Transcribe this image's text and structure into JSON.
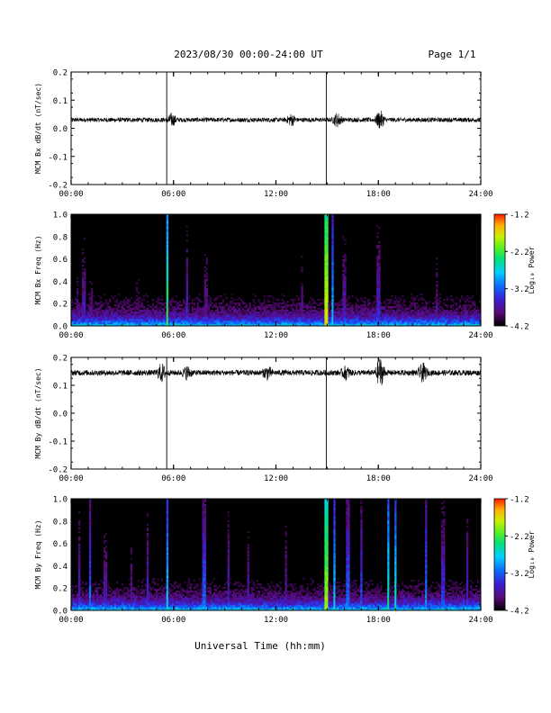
{
  "header": {
    "title": "2023/08/30  00:00-24:00 UT",
    "page": "Page 1/1"
  },
  "footer": {
    "xlabel": "Universal Time (hh:mm)"
  },
  "colors": {
    "trace": "#000000",
    "background": "#ffffff",
    "colormap": [
      "#000000",
      "#5a0a78",
      "#3b1fd6",
      "#0a6cff",
      "#00d0ff",
      "#00e07a",
      "#5cf020",
      "#c8f000",
      "#ffb000",
      "#ff1a00"
    ]
  },
  "chart_data": [
    {
      "type": "line",
      "ylabel": "MCM Bx dB/dt (nT/sec)",
      "xlim": [
        0,
        24
      ],
      "ylim": [
        -0.2,
        0.2
      ],
      "yticks": [
        "0.2",
        "0.1",
        "0.0",
        "-0.1",
        "-0.2"
      ],
      "xticks": [
        "00:00",
        "06:00",
        "12:00",
        "18:00",
        "24:00"
      ],
      "baseline": 0.03,
      "noise_amplitude": 0.008,
      "spike_times": [
        5.6,
        14.95
      ],
      "bursts": [
        {
          "t": 5.9,
          "amp": 0.02
        },
        {
          "t": 12.9,
          "amp": 0.018
        },
        {
          "t": 15.6,
          "amp": 0.022
        },
        {
          "t": 18.1,
          "amp": 0.03
        }
      ]
    },
    {
      "type": "heatmap",
      "ylabel": "MCM Bx Freq (Hz)",
      "xlim": [
        0,
        24
      ],
      "ylim": [
        0,
        1.0
      ],
      "yticks": [
        "1.0",
        "0.8",
        "0.6",
        "0.4",
        "0.2",
        "0.0"
      ],
      "xticks": [
        "00:00",
        "06:00",
        "12:00",
        "18:00",
        "24:00"
      ],
      "colorbar": {
        "label": "Log₁₀ Power",
        "ticks": [
          "-1.2",
          "-2.2",
          "-3.2",
          "-4.2"
        ],
        "range": [
          -4.2,
          -1.2
        ]
      },
      "event_lines": [
        {
          "t": 0.4,
          "level": -3.6
        },
        {
          "t": 0.75,
          "level": -3.4
        },
        {
          "t": 1.15,
          "level": -3.6
        },
        {
          "t": 3.9,
          "level": -3.7
        },
        {
          "t": 5.6,
          "level": -2.2
        },
        {
          "t": 6.8,
          "level": -3.3
        },
        {
          "t": 7.9,
          "level": -3.5
        },
        {
          "t": 13.5,
          "level": -3.5
        },
        {
          "t": 14.95,
          "level": -1.6
        },
        {
          "t": 15.3,
          "level": -2.7
        },
        {
          "t": 16.0,
          "level": -3.4
        },
        {
          "t": 18.0,
          "level": -3.3
        },
        {
          "t": 21.4,
          "level": -3.5
        }
      ]
    },
    {
      "type": "line",
      "ylabel": "MCM By dB/dt (nT/sec)",
      "xlim": [
        0,
        24
      ],
      "ylim": [
        -0.2,
        0.2
      ],
      "yticks": [
        "0.2",
        "0.1",
        "0.0",
        "-0.1",
        "-0.2"
      ],
      "xticks": [
        "00:00",
        "06:00",
        "12:00",
        "18:00",
        "24:00"
      ],
      "baseline": 0.145,
      "noise_amplitude": 0.01,
      "spike_times": [
        5.6,
        14.95
      ],
      "bursts": [
        {
          "t": 5.3,
          "amp": 0.03
        },
        {
          "t": 6.8,
          "amp": 0.02
        },
        {
          "t": 11.5,
          "amp": 0.02
        },
        {
          "t": 16.1,
          "amp": 0.02
        },
        {
          "t": 18.1,
          "amp": 0.05
        },
        {
          "t": 20.6,
          "amp": 0.03
        }
      ]
    },
    {
      "type": "heatmap",
      "ylabel": "MCM By Freq (Hz)",
      "xlim": [
        0,
        24
      ],
      "ylim": [
        0,
        1.0
      ],
      "yticks": [
        "1.0",
        "0.8",
        "0.6",
        "0.4",
        "0.2",
        "0.0"
      ],
      "xticks": [
        "00:00",
        "06:00",
        "12:00",
        "18:00",
        "24:00"
      ],
      "colorbar": {
        "label": "Log₁₀ Power",
        "ticks": [
          "-1.2",
          "-2.2",
          "-3.2",
          "-4.2"
        ],
        "range": [
          -4.2,
          -1.2
        ]
      },
      "event_lines": [
        {
          "t": 0.5,
          "level": -3.3
        },
        {
          "t": 1.1,
          "level": -3.0
        },
        {
          "t": 2.0,
          "level": -3.4
        },
        {
          "t": 3.5,
          "level": -3.5
        },
        {
          "t": 4.5,
          "level": -3.3
        },
        {
          "t": 5.6,
          "level": -2.6
        },
        {
          "t": 7.8,
          "level": -3.0
        },
        {
          "t": 9.2,
          "level": -3.3
        },
        {
          "t": 10.4,
          "level": -3.4
        },
        {
          "t": 12.6,
          "level": -3.4
        },
        {
          "t": 14.95,
          "level": -1.8
        },
        {
          "t": 15.4,
          "level": -2.6
        },
        {
          "t": 16.2,
          "level": -3.0
        },
        {
          "t": 17.0,
          "level": -3.1
        },
        {
          "t": 18.6,
          "level": -2.4
        },
        {
          "t": 19.0,
          "level": -2.5
        },
        {
          "t": 20.8,
          "level": -2.9
        },
        {
          "t": 21.8,
          "level": -3.2
        },
        {
          "t": 23.2,
          "level": -3.3
        }
      ]
    }
  ]
}
